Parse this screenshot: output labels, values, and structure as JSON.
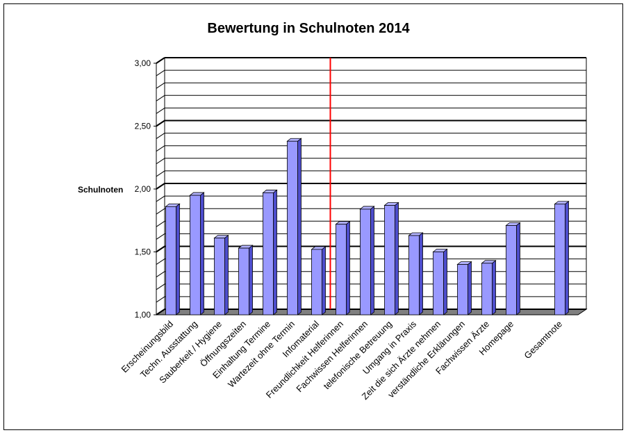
{
  "chart_data": {
    "type": "bar",
    "title": "Bewertung in Schulnoten 2014",
    "ylabel": "Schulnoten",
    "xlabel": "",
    "ylim": [
      1.0,
      3.0
    ],
    "yticks": [
      "1,00",
      "1,50",
      "2,00",
      "2,50",
      "3,00"
    ],
    "grid": true,
    "three_d": true,
    "bar_color": "#9999ff",
    "marker_line_color": "#ff0000",
    "marker_line_after_category": "Infomaterial",
    "categories": [
      "Erscheinungsbild",
      "Techn. Ausstattung",
      "Sauberkeit / Hygiene",
      "Öffnungszeiten",
      "Einhaltung Termine",
      "Wartezeit ohne Termin",
      "Infomaterial",
      "Freundlichkeit Helferinnen",
      "Fachwissen Helferinnen",
      "telefonische Betreuung",
      "Umgang in Praxis",
      "Zeit die sich Ärzte nehmen",
      "verständliche Erklärungen",
      "Fachwissen Ärzte",
      "Homepage",
      "",
      "Gesamtnote"
    ],
    "values": [
      1.86,
      1.95,
      1.61,
      1.53,
      1.97,
      2.38,
      1.52,
      1.72,
      1.84,
      1.87,
      1.63,
      1.5,
      1.4,
      1.41,
      1.71,
      null,
      1.88
    ]
  }
}
